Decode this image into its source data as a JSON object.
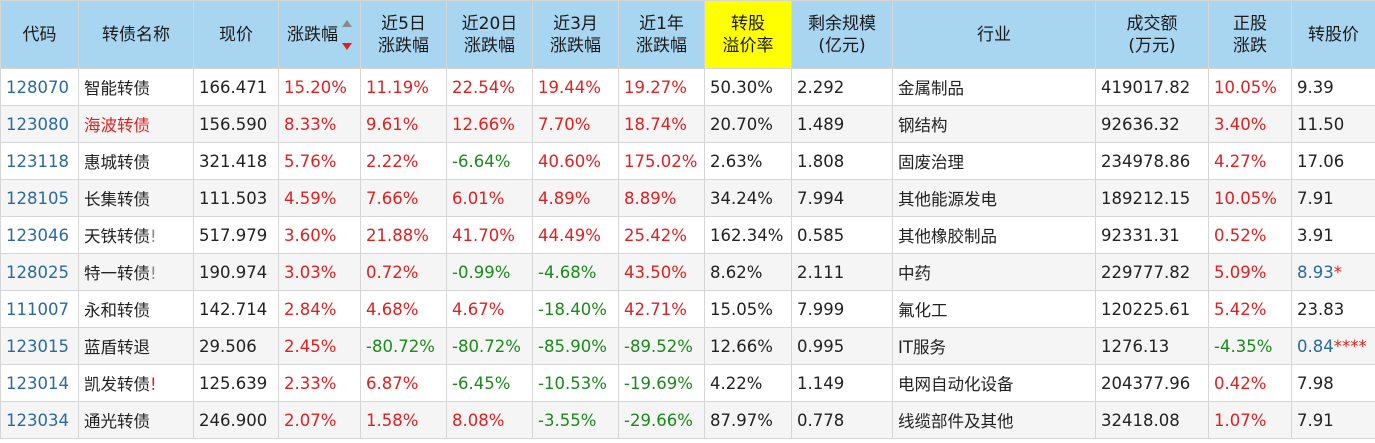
{
  "headers": [
    {
      "text": "代码"
    },
    {
      "text": "转债名称"
    },
    {
      "text": "现价"
    },
    {
      "text": "涨跌幅"
    },
    {
      "line1": "近5日",
      "line2": "涨跌幅"
    },
    {
      "line1": "近20日",
      "line2": "涨跌幅"
    },
    {
      "line1": "近3月",
      "line2": "涨跌幅"
    },
    {
      "line1": "近1年",
      "line2": "涨跌幅"
    },
    {
      "line1": "转股",
      "line2": "溢价率"
    },
    {
      "line1": "剩余规模",
      "line2": "(亿元)"
    },
    {
      "text": "行业"
    },
    {
      "line1": "成交额",
      "line2": "(万元)"
    },
    {
      "line1": "正股",
      "line2": "涨跌"
    },
    {
      "text": "转股价"
    }
  ],
  "rows": [
    {
      "code": "128070",
      "name": "智能转债",
      "name_mark": "",
      "price": "166.471",
      "chg": "15.20%",
      "d5": "11.19%",
      "d20": "22.54%",
      "m3": "19.44%",
      "y1": "19.27%",
      "premium": "50.30%",
      "remain": "2.292",
      "industry": "金属制品",
      "amount": "419017.82",
      "stock_chg": "10.05%",
      "conv_price": "9.39"
    },
    {
      "code": "123080",
      "name": "海波转债",
      "name_mark": "",
      "price": "156.590",
      "chg": "8.33%",
      "d5": "9.61%",
      "d20": "12.66%",
      "m3": "7.70%",
      "y1": "18.74%",
      "premium": "20.70%",
      "remain": "1.489",
      "industry": "钢结构",
      "amount": "92636.32",
      "stock_chg": "3.40%",
      "conv_price": "11.50"
    },
    {
      "code": "123118",
      "name": "惠城转债",
      "name_mark": "",
      "price": "321.418",
      "chg": "5.76%",
      "d5": "2.22%",
      "d20": "-6.64%",
      "m3": "40.60%",
      "y1": "175.02%",
      "premium": "2.63%",
      "remain": "1.808",
      "industry": "固废治理",
      "amount": "234978.86",
      "stock_chg": "4.27%",
      "conv_price": "17.06"
    },
    {
      "code": "128105",
      "name": "长集转债",
      "name_mark": "",
      "price": "111.503",
      "chg": "4.59%",
      "d5": "7.66%",
      "d20": "6.01%",
      "m3": "4.89%",
      "y1": "8.89%",
      "premium": "34.24%",
      "remain": "7.994",
      "industry": "其他能源发电",
      "amount": "189212.15",
      "stock_chg": "10.05%",
      "conv_price": "7.91"
    },
    {
      "code": "123046",
      "name": "天铁转债",
      "name_mark": "!",
      "price": "517.979",
      "chg": "3.60%",
      "d5": "21.88%",
      "d20": "41.70%",
      "m3": "44.49%",
      "y1": "25.42%",
      "premium": "162.34%",
      "remain": "0.585",
      "industry": "其他橡胶制品",
      "amount": "92331.31",
      "stock_chg": "0.52%",
      "conv_price": "3.91"
    },
    {
      "code": "128025",
      "name": "特一转债",
      "name_mark": "!",
      "price": "190.974",
      "chg": "3.03%",
      "d5": "0.72%",
      "d20": "-0.99%",
      "m3": "-4.68%",
      "y1": "43.50%",
      "premium": "8.62%",
      "remain": "2.111",
      "industry": "中药",
      "amount": "229777.82",
      "stock_chg": "5.09%",
      "conv_price": "8.93",
      "conv_mark": "*"
    },
    {
      "code": "111007",
      "name": "永和转债",
      "name_mark": "",
      "price": "142.714",
      "chg": "2.84%",
      "d5": "4.68%",
      "d20": "4.67%",
      "m3": "-18.40%",
      "y1": "42.71%",
      "premium": "15.05%",
      "remain": "7.999",
      "industry": "氟化工",
      "amount": "120225.61",
      "stock_chg": "5.42%",
      "conv_price": "23.83"
    },
    {
      "code": "123015",
      "name": "蓝盾转退",
      "name_mark": "",
      "price": "29.506",
      "chg": "2.45%",
      "d5": "-80.72%",
      "d20": "-80.72%",
      "m3": "-85.90%",
      "y1": "-89.52%",
      "premium": "12.66%",
      "remain": "0.995",
      "industry": "IT服务",
      "amount": "1276.13",
      "stock_chg": "-4.35%",
      "conv_price": "0.84",
      "conv_mark": "****"
    },
    {
      "code": "123014",
      "name": "凯发转债",
      "name_mark": "!",
      "price": "125.639",
      "chg": "2.33%",
      "d5": "6.87%",
      "d20": "-6.45%",
      "m3": "-10.53%",
      "y1": "-19.69%",
      "premium": "4.22%",
      "remain": "1.149",
      "industry": "电网自动化设备",
      "amount": "204377.96",
      "stock_chg": "0.42%",
      "conv_price": "7.98"
    },
    {
      "code": "123034",
      "name": "通光转债",
      "name_mark": "",
      "price": "246.900",
      "chg": "2.07%",
      "d5": "1.58%",
      "d20": "8.08%",
      "m3": "-3.55%",
      "y1": "-29.66%",
      "premium": "87.97%",
      "remain": "0.778",
      "industry": "线缆部件及其他",
      "amount": "32418.08",
      "stock_chg": "1.07%",
      "conv_price": "7.91"
    }
  ],
  "colors": {
    "header_bg": "#a8d5ef",
    "highlight": "#ffff00",
    "up": "#e02020",
    "down": "#1a8a1a",
    "link": "#2a6aa0",
    "alt_row": "#f5f5f5"
  },
  "sort": {
    "column": "涨跌幅",
    "direction": "desc"
  }
}
